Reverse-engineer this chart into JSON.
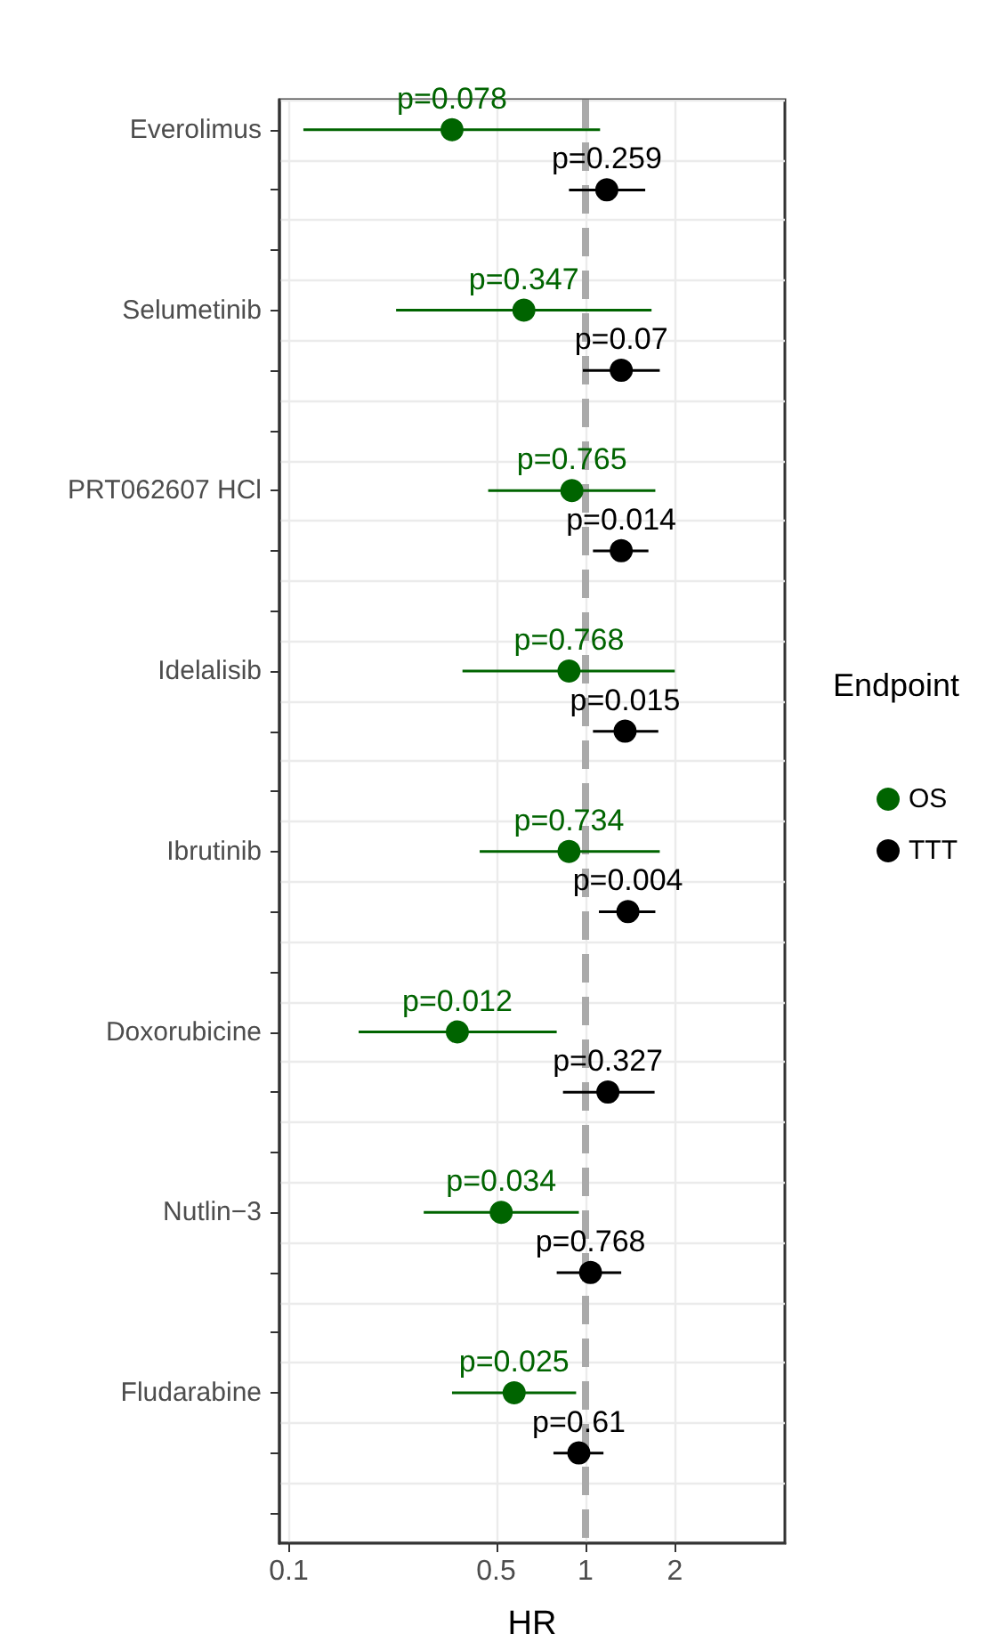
{
  "chart_data": {
    "type": "scatter",
    "orientation": "horizontal",
    "xlabel": "HR",
    "legend_title": "Endpoint",
    "legend": "right",
    "grid": true,
    "marker": "circle",
    "log": "x",
    "categories": [
      "Everolimus",
      null,
      null,
      "Selumetinib",
      null,
      null,
      "PRT062607 HCl",
      null,
      null,
      "Idelalisib",
      null,
      null,
      "Ibrutinib",
      null,
      null,
      "Doxorubicine",
      null,
      null,
      "Nutlin−3",
      null,
      null,
      "Fludarabine",
      null,
      null
    ],
    "xlim": [
      0.093,
      4.7
    ],
    "xticks": [
      0.1,
      0.5,
      1,
      2
    ],
    "ref_lines": [
      {
        "axis": "x",
        "value": 1,
        "color": "#aaaaaa",
        "line_style": "dashed"
      }
    ],
    "series": [
      {
        "name": "OS",
        "color": "#006400",
        "values": [
          0.355,
          null,
          null,
          0.62,
          null,
          null,
          0.9,
          null,
          null,
          0.88,
          null,
          null,
          0.88,
          null,
          null,
          0.37,
          null,
          null,
          0.52,
          null,
          null,
          0.575,
          null,
          null
        ],
        "errors": [
          [
            0.112,
            1.12
          ],
          null,
          null,
          [
            0.23,
            1.67
          ],
          null,
          null,
          [
            0.47,
            1.72
          ],
          null,
          null,
          [
            0.385,
            2.0
          ],
          null,
          null,
          [
            0.44,
            1.78
          ],
          null,
          null,
          [
            0.172,
            0.8
          ],
          null,
          null,
          [
            0.285,
            0.95
          ],
          null,
          null,
          [
            0.355,
            0.93
          ],
          null,
          null
        ]
      },
      {
        "name": "TTT",
        "color": "#000000",
        "values": [
          null,
          1.18,
          null,
          null,
          1.32,
          null,
          null,
          1.32,
          null,
          null,
          1.36,
          null,
          null,
          1.39,
          null,
          null,
          1.19,
          null,
          null,
          1.04,
          null,
          null,
          0.95,
          null
        ],
        "errors": [
          null,
          [
            0.88,
            1.59
          ],
          null,
          null,
          [
            0.98,
            1.78
          ],
          null,
          null,
          [
            1.06,
            1.63
          ],
          null,
          null,
          [
            1.06,
            1.76
          ],
          null,
          null,
          [
            1.11,
            1.72
          ],
          null,
          null,
          [
            0.84,
            1.71
          ],
          null,
          null,
          [
            0.8,
            1.32
          ],
          null,
          null,
          [
            0.78,
            1.15
          ],
          null
        ]
      }
    ],
    "annotations": [
      {
        "text": "p=0.078",
        "x": 0.355,
        "y": "Everolimus"
      },
      "p=0.259",
      {
        "text": "p=0.347",
        "x": 0.62,
        "y": "Selumetinib"
      },
      "p=0.07",
      {
        "text": "p=0.765",
        "x": 0.9,
        "y": "PRT062607 HCl"
      },
      "p=0.014",
      {
        "text": "p=0.768",
        "x": 0.88,
        "y": "Idelalisib"
      },
      "p=0.015",
      {
        "text": "p=0.734",
        "x": 0.88,
        "y": "Ibrutinib"
      },
      "p=0.004",
      {
        "text": "p=0.012",
        "x": 0.37,
        "y": "Doxorubicine"
      },
      "p=0.327",
      {
        "text": "p=0.034",
        "x": 0.52,
        "y": "Nutlin−3"
      },
      "p=0.768",
      {
        "text": "p=0.025",
        "x": 0.575,
        "y": "Fludarabine"
      },
      "p=0.61"
    ]
  }
}
